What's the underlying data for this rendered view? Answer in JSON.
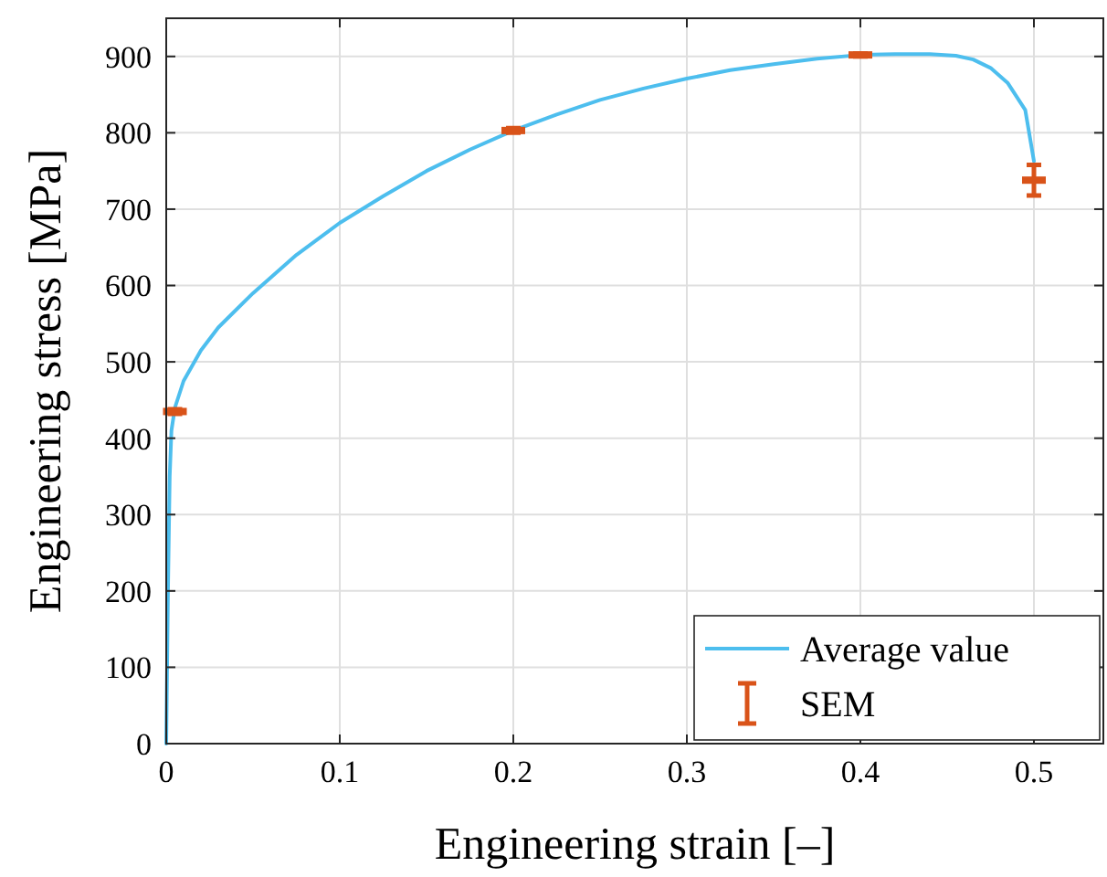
{
  "chart_data": {
    "type": "line",
    "xlabel": "Engineering strain [–]",
    "ylabel": "Engineering stress [MPa]",
    "xlim": [
      0,
      0.54
    ],
    "ylim": [
      0,
      950
    ],
    "xticks": [
      0,
      0.1,
      0.2,
      0.3,
      0.4,
      0.5
    ],
    "yticks": [
      0,
      100,
      200,
      300,
      400,
      500,
      600,
      700,
      800,
      900
    ],
    "grid": true,
    "legend": "bottom right",
    "line_style": "solid",
    "series": [
      {
        "name": "Average value",
        "color": "#4dbeee",
        "x": [
          0,
          0.001,
          0.002,
          0.003,
          0.005,
          0.01,
          0.02,
          0.03,
          0.05,
          0.075,
          0.1,
          0.125,
          0.15,
          0.175,
          0.2,
          0.225,
          0.25,
          0.275,
          0.3,
          0.325,
          0.35,
          0.375,
          0.4,
          0.42,
          0.44,
          0.455,
          0.465,
          0.475,
          0.485,
          0.495,
          0.5
        ],
        "values": [
          0,
          200,
          350,
          410,
          440,
          475,
          515,
          545,
          590,
          640,
          682,
          717,
          750,
          778,
          803,
          824,
          843,
          858,
          871,
          882,
          890,
          897,
          902,
          903,
          903,
          901,
          896,
          885,
          865,
          830,
          763
        ]
      },
      {
        "name": "SEM",
        "type": "scatter",
        "color": "#d95319",
        "x": [
          0.005,
          0.2,
          0.4,
          0.5
        ],
        "values": [
          435,
          803,
          902,
          738
        ],
        "errors": [
          3,
          3,
          2,
          20
        ]
      }
    ]
  }
}
